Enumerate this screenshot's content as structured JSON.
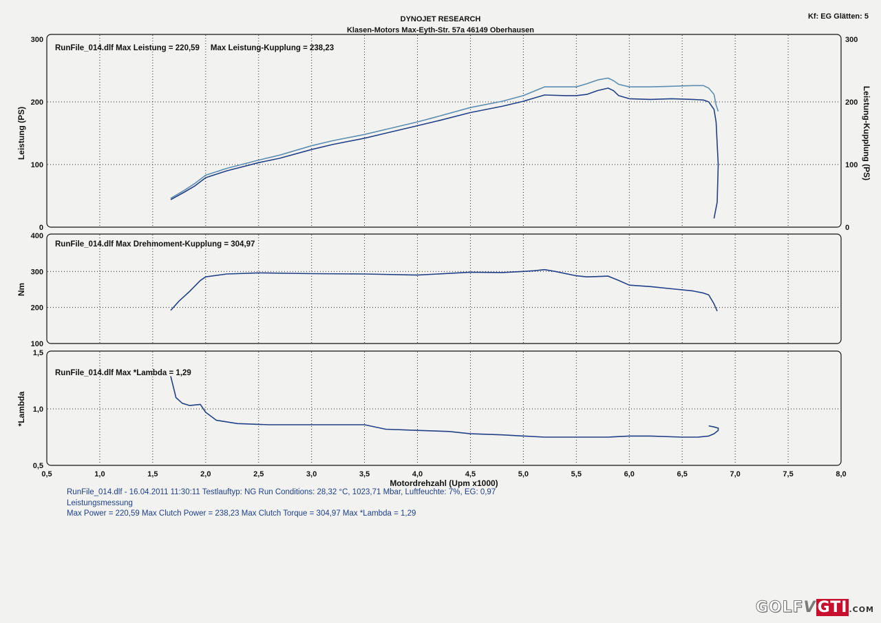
{
  "header": {
    "title": "DYNOJET RESEARCH",
    "address": "Klasen-Motors   Max-Eyth-Str. 57a   46149 Oberhausen",
    "top_right": "Kf: EG  Glätten: 5"
  },
  "footer": {
    "line1": "RunFile_014.dlf - 16.04.2011 11:30:11  Testlauftyp: NG  Run Conditions: 28,32 °C, 1023,71 Mbar,  Luftfeuchte: 7%, EG: 0,97",
    "line2": "Leistungsmessung",
    "line3": "Max Power = 220,59  Max Clutch Power = 238,23  Max Clutch Torque = 304,97  Max *Lambda = 1,29"
  },
  "logo": {
    "golf": "GOLF",
    "v": "V",
    "gti": "GTI",
    "com": ".COM"
  },
  "colors": {
    "line_dark": "#1f3f86",
    "line_light": "#5b8db0",
    "grid": "#222222"
  },
  "chart_data": [
    {
      "type": "line",
      "annotation": "RunFile_014.dlf Max Leistung = 220,59     Max Leistung-Kupplung = 238,23",
      "ylabel": "Leistung (PS)",
      "ylabel_right": "Leistung-Kupplung (PS)",
      "ylim": [
        0,
        300
      ],
      "yticks": [
        "0",
        "100",
        "200",
        "300"
      ],
      "xlim": [
        0.5,
        8.0
      ],
      "grid": true,
      "series": [
        {
          "color": "#1f3f86",
          "x": [
            1.67,
            1.8,
            1.9,
            2.0,
            2.2,
            2.5,
            2.7,
            3.0,
            3.2,
            3.5,
            3.7,
            4.0,
            4.2,
            4.5,
            4.8,
            5.0,
            5.1,
            5.2,
            5.4,
            5.5,
            5.6,
            5.7,
            5.8,
            5.85,
            5.9,
            6.0,
            6.2,
            6.4,
            6.6,
            6.7,
            6.75,
            6.8,
            6.82,
            6.84,
            6.83,
            6.8
          ],
          "y": [
            44,
            56,
            66,
            79,
            90,
            103,
            110,
            124,
            132,
            142,
            150,
            162,
            170,
            183,
            193,
            201,
            206,
            211,
            210,
            210,
            212,
            218,
            222,
            218,
            210,
            205,
            204,
            205,
            204,
            203,
            200,
            188,
            168,
            100,
            40,
            14
          ]
        },
        {
          "color": "#5b8db0",
          "x": [
            1.67,
            1.8,
            1.9,
            2.0,
            2.2,
            2.5,
            2.7,
            3.0,
            3.2,
            3.5,
            3.7,
            4.0,
            4.2,
            4.5,
            4.8,
            5.0,
            5.1,
            5.2,
            5.4,
            5.5,
            5.6,
            5.7,
            5.8,
            5.85,
            5.9,
            6.0,
            6.2,
            6.4,
            6.6,
            6.7,
            6.75,
            6.8,
            6.82,
            6.84
          ],
          "y": [
            46,
            59,
            70,
            83,
            94,
            107,
            115,
            130,
            138,
            148,
            156,
            168,
            177,
            191,
            201,
            210,
            217,
            224,
            224,
            224,
            229,
            235,
            238,
            234,
            228,
            224,
            224,
            225,
            226,
            226,
            222,
            212,
            195,
            185
          ]
        }
      ]
    },
    {
      "type": "line",
      "annotation": "RunFile_014.dlf Max Drehmoment-Kupplung = 304,97",
      "ylabel": "Nm",
      "ylim": [
        100,
        400
      ],
      "yticks": [
        "100",
        "200",
        "300",
        "400"
      ],
      "xlim": [
        0.5,
        8.0
      ],
      "grid": true,
      "series": [
        {
          "color": "#1f3f86",
          "x": [
            1.67,
            1.75,
            1.85,
            1.95,
            2.0,
            2.2,
            2.5,
            3.0,
            3.5,
            4.0,
            4.5,
            4.8,
            5.0,
            5.1,
            5.2,
            5.3,
            5.5,
            5.6,
            5.7,
            5.8,
            5.9,
            6.0,
            6.2,
            6.4,
            6.6,
            6.7,
            6.75,
            6.8,
            6.83
          ],
          "y": [
            192,
            218,
            245,
            275,
            285,
            293,
            296,
            294,
            293,
            290,
            298,
            297,
            300,
            302,
            305,
            300,
            288,
            285,
            286,
            287,
            275,
            262,
            258,
            252,
            246,
            240,
            235,
            210,
            190
          ]
        }
      ]
    },
    {
      "type": "line",
      "annotation": "RunFile_014.dlf Max *Lambda = 1,29",
      "ylabel": "*Lambda",
      "ylim": [
        0.5,
        1.5
      ],
      "yticks": [
        "0,5",
        "1,0",
        "1,5"
      ],
      "xlim": [
        0.5,
        8.0
      ],
      "xlabel": "Motordrehzahl (Upm x1000)",
      "xticks": [
        "0,5",
        "1,0",
        "1,5",
        "2,0",
        "2,5",
        "3,0",
        "3,5",
        "4,0",
        "4,5",
        "5,0",
        "5,5",
        "6,0",
        "6,5",
        "7,0",
        "7,5",
        "8,0"
      ],
      "grid": true,
      "series": [
        {
          "color": "#1f3f86",
          "x": [
            1.67,
            1.72,
            1.78,
            1.85,
            1.95,
            2.0,
            2.1,
            2.3,
            2.6,
            3.0,
            3.3,
            3.5,
            3.7,
            4.0,
            4.3,
            4.5,
            4.8,
            5.0,
            5.2,
            5.5,
            5.8,
            6.0,
            6.2,
            6.5,
            6.65,
            6.75,
            6.8,
            6.84,
            6.84,
            6.8,
            6.75
          ],
          "y": [
            1.29,
            1.1,
            1.05,
            1.03,
            1.04,
            0.97,
            0.9,
            0.87,
            0.86,
            0.86,
            0.86,
            0.86,
            0.82,
            0.81,
            0.8,
            0.78,
            0.77,
            0.76,
            0.75,
            0.75,
            0.75,
            0.76,
            0.76,
            0.75,
            0.75,
            0.76,
            0.78,
            0.81,
            0.83,
            0.84,
            0.85
          ]
        }
      ]
    }
  ]
}
